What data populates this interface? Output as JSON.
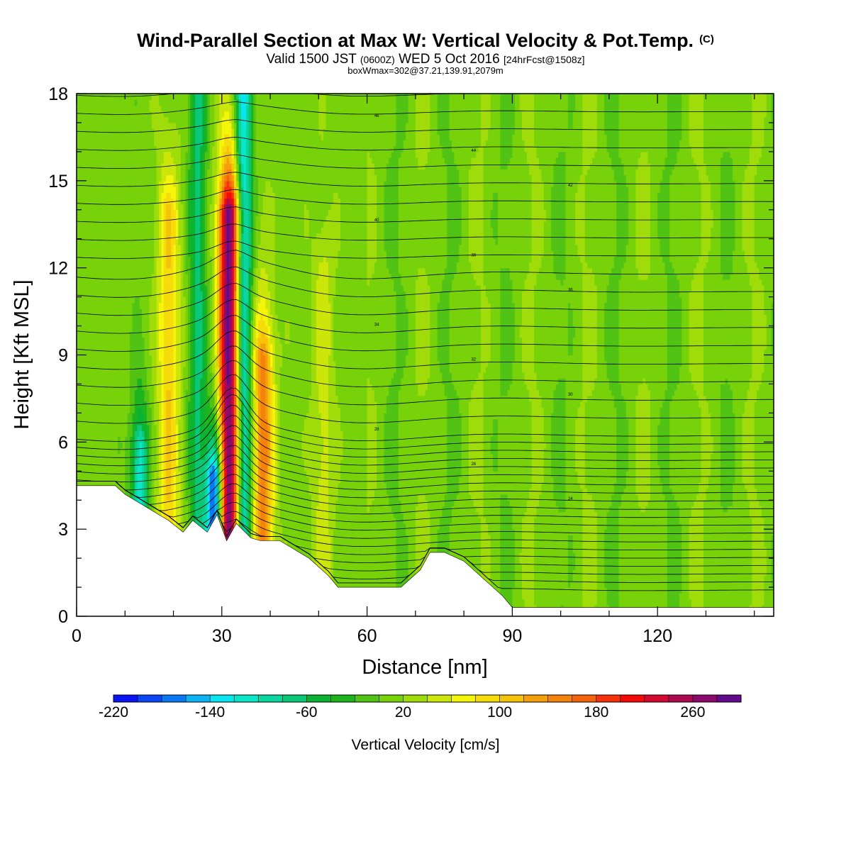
{
  "title": {
    "main": "Wind-Parallel Section at Max W: Vertical Velocity & Pot.Temp.",
    "copyright": "(C)",
    "valid_a": "Valid 1500 JST",
    "valid_z": "(0600Z)",
    "valid_b": "WED 5 Oct 2016",
    "valid_fcst": "[24hrFcst@1508z]",
    "box": "boxWmax=302@37.21,139.91,2079m"
  },
  "chart_data": {
    "type": "heatmap",
    "xlabel": "Distance [nm]",
    "ylabel": "Height [Kft MSL]",
    "xlim": [
      0,
      144
    ],
    "ylim": [
      0,
      18
    ],
    "xticks": [
      0,
      30,
      60,
      90,
      120
    ],
    "yticks": [
      0,
      3,
      6,
      9,
      12,
      15,
      18
    ],
    "colorbar": {
      "label": "Vertical Velocity [cm/s]",
      "min": -220,
      "max": 300,
      "step": 20,
      "tick_values": [
        -220,
        -140,
        -60,
        20,
        100,
        180,
        260
      ],
      "tick_labels": [
        "-220",
        "-140",
        "-60",
        "20",
        "100",
        "180",
        "260"
      ],
      "colors": [
        "#0a14f5",
        "#0a46f5",
        "#0a78f5",
        "#0ab4f5",
        "#0ae6f0",
        "#0ae6c8",
        "#0ad7a0",
        "#0ac878",
        "#0ab432",
        "#1eb41e",
        "#50c314",
        "#78d20a",
        "#a0dc0a",
        "#cde60a",
        "#f5f50a",
        "#f5dc0a",
        "#f5c30a",
        "#f5a00a",
        "#f5820a",
        "#f5640a",
        "#f5320a",
        "#f50a0a",
        "#d20a32",
        "#af0a50",
        "#8c0a6e",
        "#640a8c"
      ]
    },
    "pot_temp_labels": [
      "46",
      "44",
      "42",
      "40",
      "38",
      "36",
      "34",
      "32",
      "30",
      "28",
      "26",
      "24"
    ],
    "terrain_kft": [
      [
        0,
        4.5
      ],
      [
        8,
        4.5
      ],
      [
        10,
        4.2
      ],
      [
        12,
        4.0
      ],
      [
        16,
        3.6
      ],
      [
        19,
        3.3
      ],
      [
        22,
        2.9
      ],
      [
        24,
        3.3
      ],
      [
        27,
        2.9
      ],
      [
        29,
        3.5
      ],
      [
        31,
        2.6
      ],
      [
        33,
        3.2
      ],
      [
        36,
        2.7
      ],
      [
        38,
        2.6
      ],
      [
        42,
        2.6
      ],
      [
        48,
        2.0
      ],
      [
        52,
        1.4
      ],
      [
        54,
        1.0
      ],
      [
        62,
        1.0
      ],
      [
        67,
        1.0
      ],
      [
        71,
        1.6
      ],
      [
        73,
        2.2
      ],
      [
        76,
        2.2
      ],
      [
        80,
        1.9
      ],
      [
        84,
        1.3
      ],
      [
        88,
        0.7
      ],
      [
        90,
        0.3
      ],
      [
        100,
        0.3
      ],
      [
        120,
        0.3
      ],
      [
        144,
        0.3
      ]
    ],
    "updraft_cores": [
      {
        "x": 31.5,
        "ztop": 14,
        "w": 280
      },
      {
        "x": 38.5,
        "ztop": 9,
        "w": 140
      },
      {
        "x": 19,
        "ztop": 14,
        "w": 90
      },
      {
        "x": 51,
        "ztop": 12,
        "w": 40
      }
    ],
    "downdraft_cores": [
      {
        "x": 28.5,
        "ztop": 5,
        "w": -220
      },
      {
        "x": 34.5,
        "ztop": 18,
        "w": -140
      },
      {
        "x": 25,
        "ztop": 18,
        "w": -80
      },
      {
        "x": 13,
        "ztop": 6,
        "w": -120
      }
    ]
  }
}
